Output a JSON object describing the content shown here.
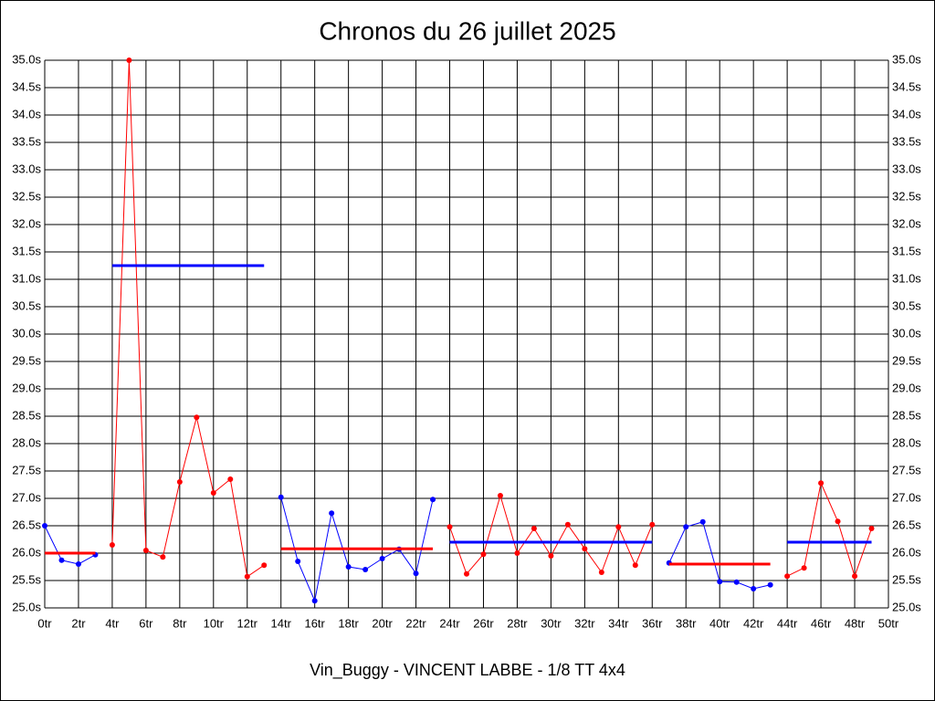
{
  "chart_data": {
    "type": "line",
    "title": "Chronos du 26 juillet 2025",
    "xlabel": "Vin_Buggy - VINCENT LABBE - 1/8 TT 4x4",
    "xlim": [
      0,
      50
    ],
    "ylim": [
      25,
      35
    ],
    "grid": true,
    "xticks": [
      {
        "value": 0,
        "label": "0tr"
      },
      {
        "value": 2,
        "label": "2tr"
      },
      {
        "value": 4,
        "label": "4tr"
      },
      {
        "value": 6,
        "label": "6tr"
      },
      {
        "value": 8,
        "label": "8tr"
      },
      {
        "value": 10,
        "label": "10tr"
      },
      {
        "value": 12,
        "label": "12tr"
      },
      {
        "value": 14,
        "label": "14tr"
      },
      {
        "value": 16,
        "label": "16tr"
      },
      {
        "value": 18,
        "label": "18tr"
      },
      {
        "value": 20,
        "label": "20tr"
      },
      {
        "value": 22,
        "label": "22tr"
      },
      {
        "value": 24,
        "label": "24tr"
      },
      {
        "value": 26,
        "label": "26tr"
      },
      {
        "value": 28,
        "label": "28tr"
      },
      {
        "value": 30,
        "label": "30tr"
      },
      {
        "value": 32,
        "label": "32tr"
      },
      {
        "value": 34,
        "label": "34tr"
      },
      {
        "value": 36,
        "label": "36tr"
      },
      {
        "value": 38,
        "label": "38tr"
      },
      {
        "value": 40,
        "label": "40tr"
      },
      {
        "value": 42,
        "label": "42tr"
      },
      {
        "value": 44,
        "label": "44tr"
      },
      {
        "value": 46,
        "label": "46tr"
      },
      {
        "value": 48,
        "label": "48tr"
      },
      {
        "value": 50,
        "label": "50tr"
      }
    ],
    "yticks": [
      {
        "value": 25,
        "label": "25.0s"
      },
      {
        "value": 25.5,
        "label": "25.5s"
      },
      {
        "value": 26,
        "label": "26.0s"
      },
      {
        "value": 26.5,
        "label": "26.5s"
      },
      {
        "value": 27,
        "label": "27.0s"
      },
      {
        "value": 27.5,
        "label": "27.5s"
      },
      {
        "value": 28,
        "label": "28.0s"
      },
      {
        "value": 28.5,
        "label": "28.5s"
      },
      {
        "value": 29,
        "label": "29.0s"
      },
      {
        "value": 29.5,
        "label": "29.5s"
      },
      {
        "value": 30,
        "label": "30.0s"
      },
      {
        "value": 30.5,
        "label": "30.5s"
      },
      {
        "value": 31,
        "label": "31.0s"
      },
      {
        "value": 31.5,
        "label": "31.5s"
      },
      {
        "value": 32,
        "label": "32.0s"
      },
      {
        "value": 32.5,
        "label": "32.5s"
      },
      {
        "value": 33,
        "label": "33.0s"
      },
      {
        "value": 33.5,
        "label": "33.5s"
      },
      {
        "value": 34,
        "label": "34.0s"
      },
      {
        "value": 34.5,
        "label": "34.5s"
      },
      {
        "value": 35,
        "label": "35.0s"
      }
    ],
    "series": [
      {
        "color": "#0000ff",
        "mean": 26.0,
        "mean_color": "#ff0000",
        "x": [
          0,
          1,
          2,
          3
        ],
        "values": [
          26.5,
          25.87,
          25.8,
          25.97
        ]
      },
      {
        "color": "#ff0000",
        "mean": 31.25,
        "mean_color": "#0000ff",
        "x": [
          4,
          5,
          6,
          7,
          8,
          9,
          10,
          11,
          12,
          13
        ],
        "values": [
          26.15,
          35.0,
          26.05,
          25.93,
          27.3,
          28.48,
          27.1,
          27.35,
          25.57,
          25.78
        ]
      },
      {
        "color": "#0000ff",
        "mean": 26.08,
        "mean_color": "#ff0000",
        "x": [
          14,
          15,
          16,
          17,
          18,
          19,
          20,
          21,
          22,
          23
        ],
        "values": [
          27.02,
          25.85,
          25.13,
          26.73,
          25.75,
          25.7,
          25.9,
          26.07,
          25.63,
          26.98
        ]
      },
      {
        "color": "#ff0000",
        "mean": 26.2,
        "mean_color": "#0000ff",
        "x": [
          24,
          25,
          26,
          27,
          28,
          29,
          30,
          31,
          32,
          33,
          34,
          35,
          36
        ],
        "values": [
          26.48,
          25.62,
          25.98,
          27.05,
          26.0,
          26.45,
          25.95,
          26.52,
          26.08,
          25.65,
          26.48,
          25.78,
          26.52
        ]
      },
      {
        "color": "#0000ff",
        "mean": 25.8,
        "mean_color": "#ff0000",
        "x": [
          37,
          38,
          39,
          40,
          41,
          42,
          43
        ],
        "values": [
          25.82,
          26.48,
          26.57,
          25.48,
          25.47,
          25.35,
          25.42
        ]
      },
      {
        "color": "#ff0000",
        "mean": 26.2,
        "mean_color": "#0000ff",
        "x": [
          44,
          45,
          46,
          47,
          48,
          49
        ],
        "values": [
          25.58,
          25.73,
          27.28,
          26.58,
          25.58,
          26.45
        ]
      }
    ]
  }
}
